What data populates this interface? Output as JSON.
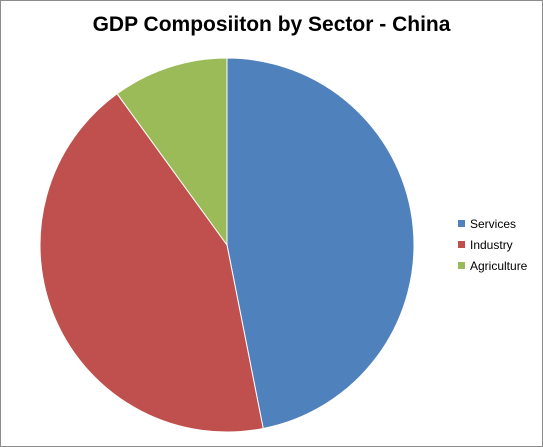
{
  "chart_data": {
    "type": "pie",
    "title": "GDP Composiiton by Sector - China",
    "categories": [
      "Services",
      "Industry",
      "Agriculture"
    ],
    "values": [
      46.9,
      43.1,
      10.0
    ],
    "colors": [
      "#4f81bd",
      "#c0504d",
      "#9bbb59"
    ],
    "legend_position": "right"
  }
}
